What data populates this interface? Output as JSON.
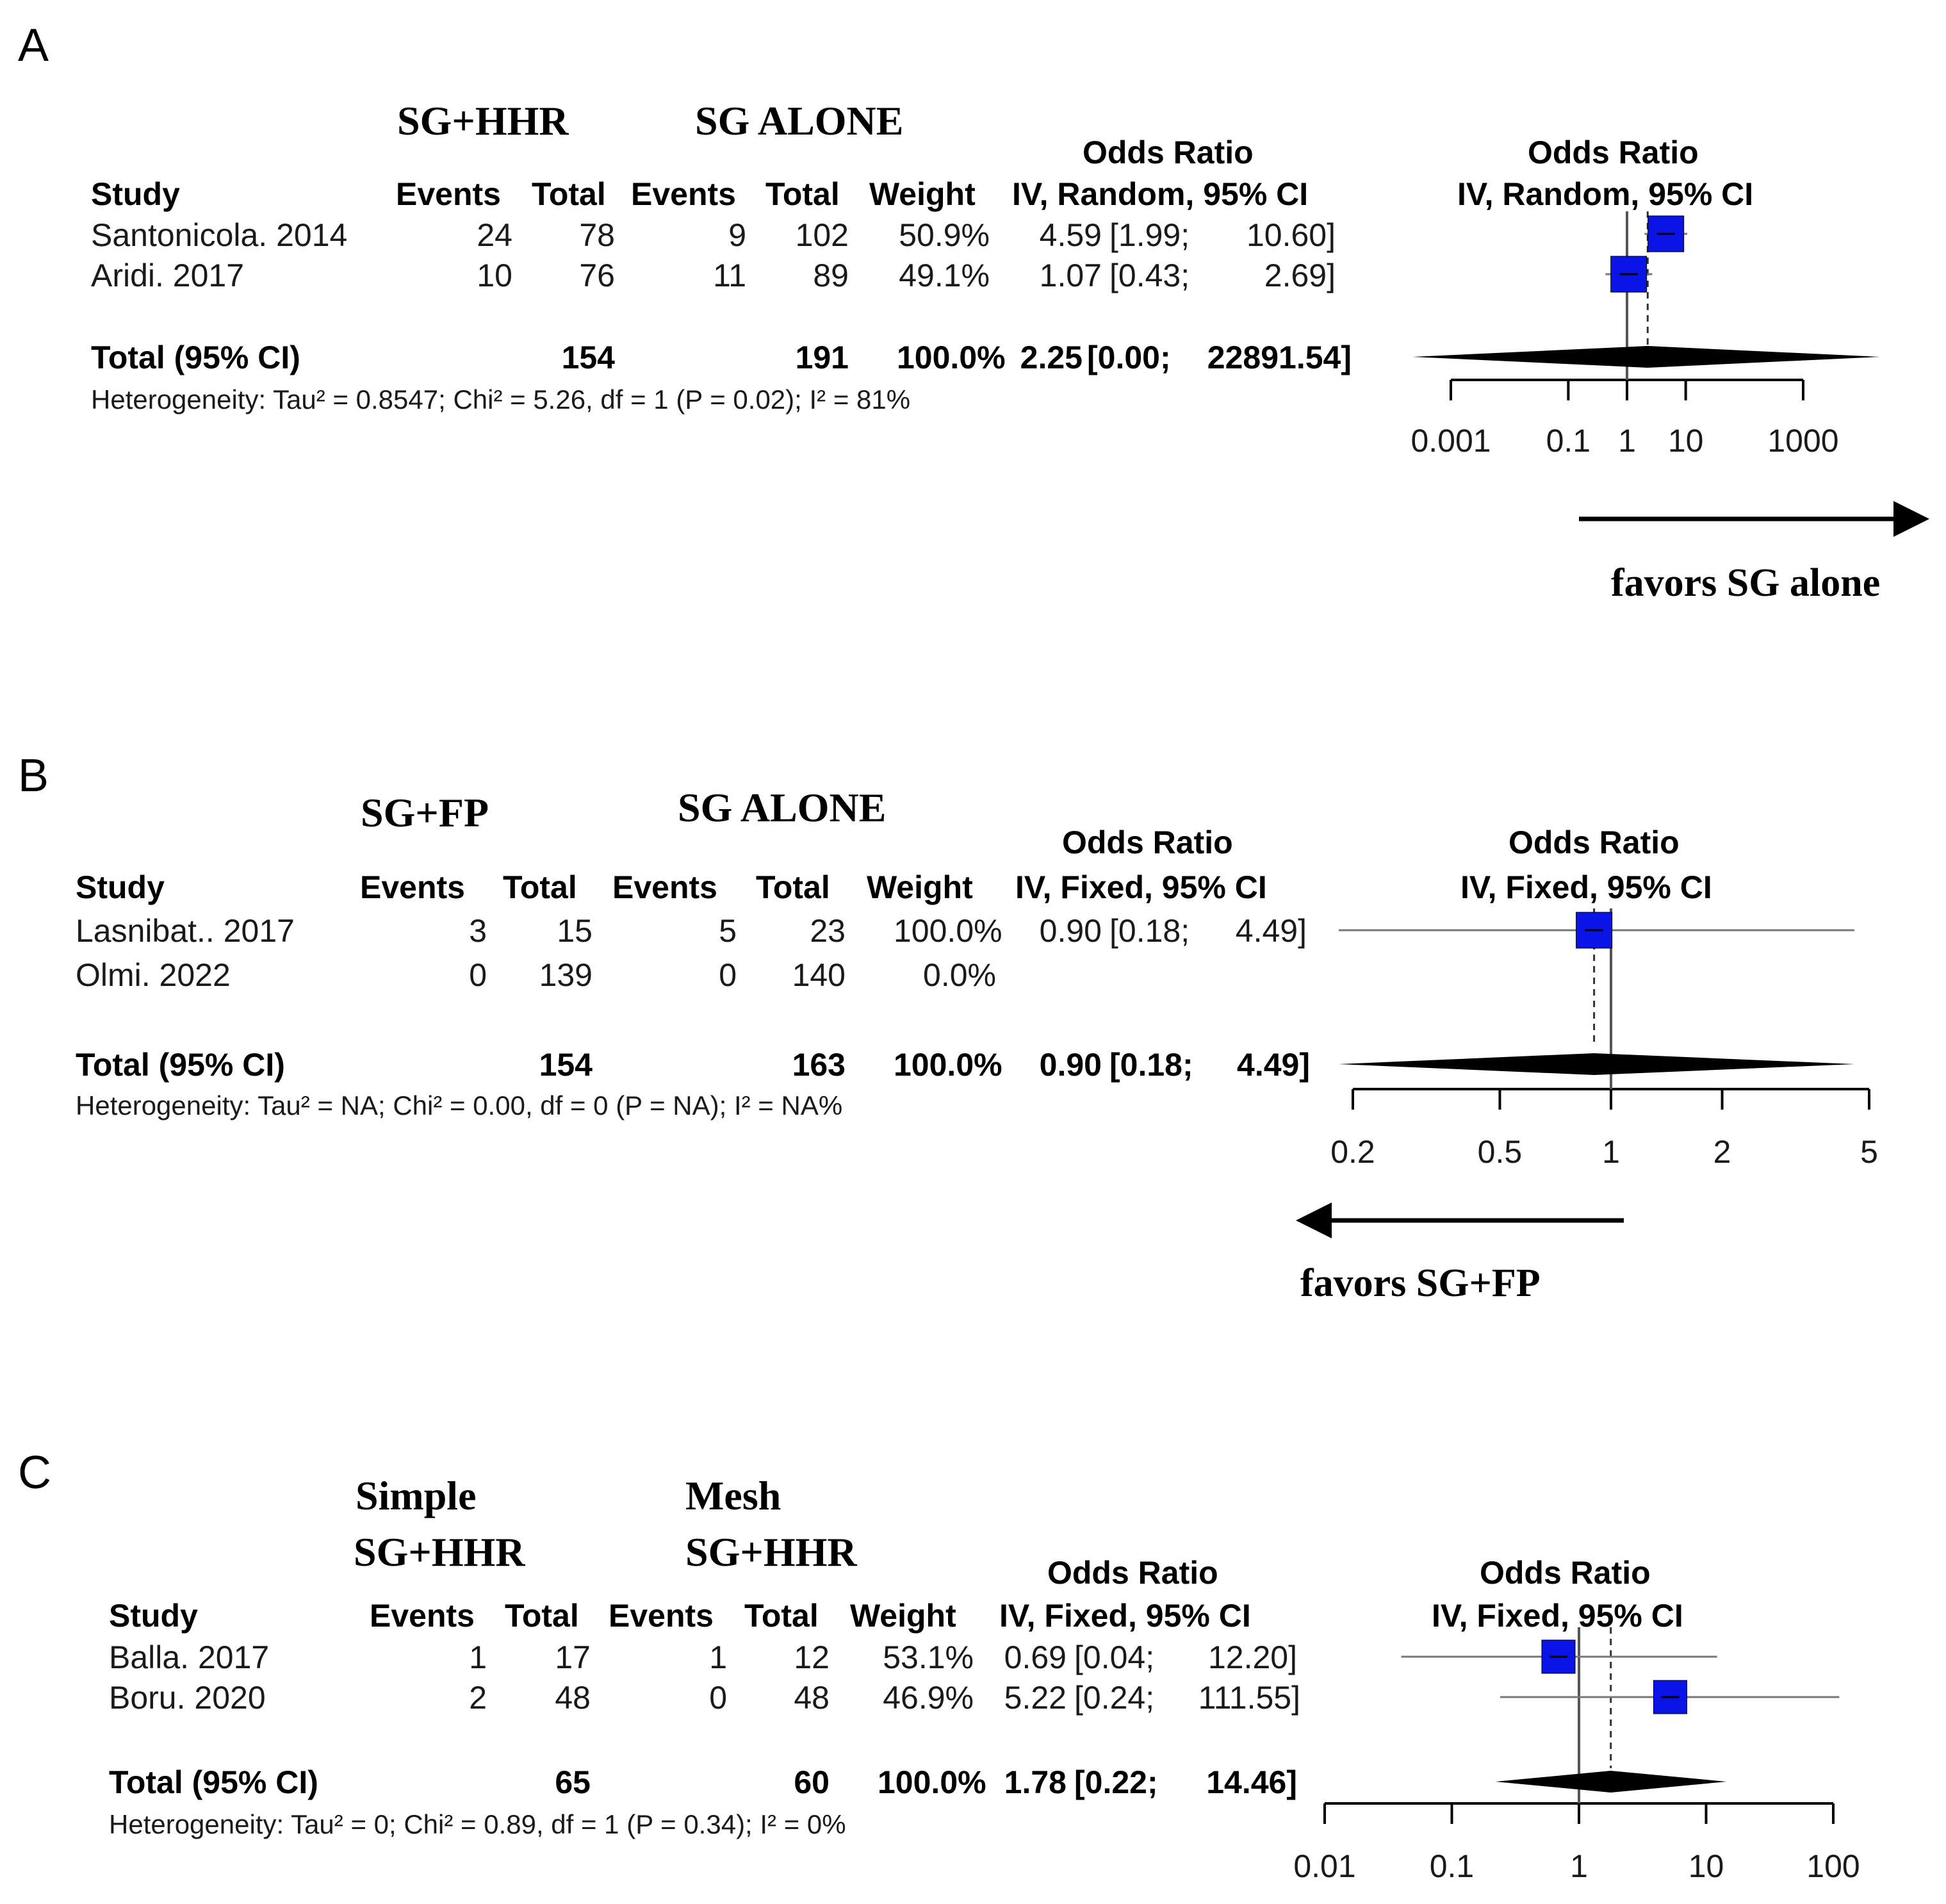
{
  "panels": [
    {
      "letter": "A",
      "group1": [
        "SG+HHR"
      ],
      "group2": [
        "SG ALONE"
      ],
      "headers": {
        "study": "Study",
        "events": "Events",
        "total": "Total",
        "weight": "Weight",
        "or_title": "Odds Ratio",
        "or_method": "IV, Random, 95% CI"
      },
      "studies": [
        {
          "name": "Santonicola. 2014",
          "e1": "24",
          "t1": "78",
          "e2": "9",
          "t2": "102",
          "weight": "50.9%",
          "or": "4.59",
          "ci": "[1.99;",
          "ci_hi": "10.60]"
        },
        {
          "name": "Aridi. 2017",
          "e1": "10",
          "t1": "76",
          "e2": "11",
          "t2": "89",
          "weight": "49.1%",
          "or": "1.07",
          "ci": "[0.43;",
          "ci_hi": "2.69]"
        }
      ],
      "total": {
        "label": "Total (95% CI)",
        "t1": "154",
        "t2": "191",
        "weight": "100.0%",
        "or": "2.25",
        "ci": "[0.00;",
        "ci_hi": "22891.54]"
      },
      "heterogeneity": "Heterogeneity: Tau² = 0.8547; Chi² = 5.26, df = 1 (P = 0.02); I² = 81%",
      "ticks": [
        "0.001",
        "0.1",
        "1",
        "10",
        "1000"
      ],
      "favors": "favors  SG alone"
    },
    {
      "letter": "B",
      "group1": [
        "SG+FP"
      ],
      "group2": [
        "SG ALONE"
      ],
      "headers": {
        "study": "Study",
        "events": "Events",
        "total": "Total",
        "weight": "Weight",
        "or_title": "Odds Ratio",
        "or_method": "IV, Fixed, 95% CI"
      },
      "studies": [
        {
          "name": "Lasnibat.. 2017",
          "e1": "3",
          "t1": "15",
          "e2": "5",
          "t2": "23",
          "weight": "100.0%",
          "or": "0.90",
          "ci": "[0.18;",
          "ci_hi": "4.49]"
        },
        {
          "name": "Olmi. 2022",
          "e1": "0",
          "t1": "139",
          "e2": "0",
          "t2": "140",
          "weight": "0.0%",
          "or": "",
          "ci": "",
          "ci_hi": ""
        }
      ],
      "total": {
        "label": "Total (95% CI)",
        "t1": "154",
        "t2": "163",
        "weight": "100.0%",
        "or": "0.90",
        "ci": "[0.18;",
        "ci_hi": "4.49]"
      },
      "heterogeneity": "Heterogeneity: Tau² = NA; Chi² = 0.00, df = 0 (P = NA); I² = NA%",
      "ticks": [
        "0.2",
        "0.5",
        "1",
        "2",
        "5"
      ],
      "favors": "favors  SG+FP"
    },
    {
      "letter": "C",
      "group1": [
        "Simple",
        "SG+HHR"
      ],
      "group2": [
        "Mesh",
        "SG+HHR"
      ],
      "headers": {
        "study": "Study",
        "events": "Events",
        "total": "Total",
        "weight": "Weight",
        "or_title": "Odds Ratio",
        "or_method": "IV, Fixed, 95% CI"
      },
      "studies": [
        {
          "name": "Balla. 2017",
          "e1": "1",
          "t1": "17",
          "e2": "1",
          "t2": "12",
          "weight": "53.1%",
          "or": "0.69",
          "ci": "[0.04;",
          "ci_hi": "12.20]"
        },
        {
          "name": "Boru. 2020",
          "e1": "2",
          "t1": "48",
          "e2": "0",
          "t2": "48",
          "weight": "46.9%",
          "or": "5.22",
          "ci": "[0.24;",
          "ci_hi": "111.55]"
        }
      ],
      "total": {
        "label": "Total (95% CI)",
        "t1": "65",
        "t2": "60",
        "weight": "100.0%",
        "or": "1.78",
        "ci": "[0.22;",
        "ci_hi": "14.46]"
      },
      "heterogeneity": "Heterogeneity: Tau² = 0; Chi² = 0.89, df = 1 (P = 0.34); I² = 0%",
      "ticks": [
        "0.01",
        "0.1",
        "1",
        "10",
        "100"
      ],
      "favors": ""
    }
  ],
  "chart_data": [
    {
      "type": "forest",
      "scale": "log",
      "xlim": [
        0.001,
        1000
      ],
      "ticks": [
        0.001,
        0.1,
        1,
        10,
        1000
      ],
      "studies": [
        {
          "name": "Santonicola. 2014",
          "or": 4.59,
          "lo": 1.99,
          "hi": 10.6,
          "weight": 50.9
        },
        {
          "name": "Aridi. 2017",
          "or": 1.07,
          "lo": 0.43,
          "hi": 2.69,
          "weight": 49.1
        }
      ],
      "pooled": {
        "or": 2.25,
        "lo": 1e-05,
        "hi": 22891.54
      },
      "favors_direction": "right"
    },
    {
      "type": "forest",
      "scale": "log",
      "xlim": [
        0.2,
        5
      ],
      "ticks": [
        0.2,
        0.5,
        1,
        2,
        5
      ],
      "studies": [
        {
          "name": "Lasnibat.. 2017",
          "or": 0.9,
          "lo": 0.18,
          "hi": 4.49,
          "weight": 100.0
        }
      ],
      "pooled": {
        "or": 0.9,
        "lo": 0.18,
        "hi": 4.49
      },
      "favors_direction": "left"
    },
    {
      "type": "forest",
      "scale": "log",
      "xlim": [
        0.01,
        100
      ],
      "ticks": [
        0.01,
        0.1,
        1,
        10,
        100
      ],
      "studies": [
        {
          "name": "Balla. 2017",
          "or": 0.69,
          "lo": 0.04,
          "hi": 12.2,
          "weight": 53.1
        },
        {
          "name": "Boru. 2020",
          "or": 5.22,
          "lo": 0.24,
          "hi": 111.55,
          "weight": 46.9
        }
      ],
      "pooled": {
        "or": 1.78,
        "lo": 0.22,
        "hi": 14.46
      },
      "favors_direction": "none"
    }
  ]
}
